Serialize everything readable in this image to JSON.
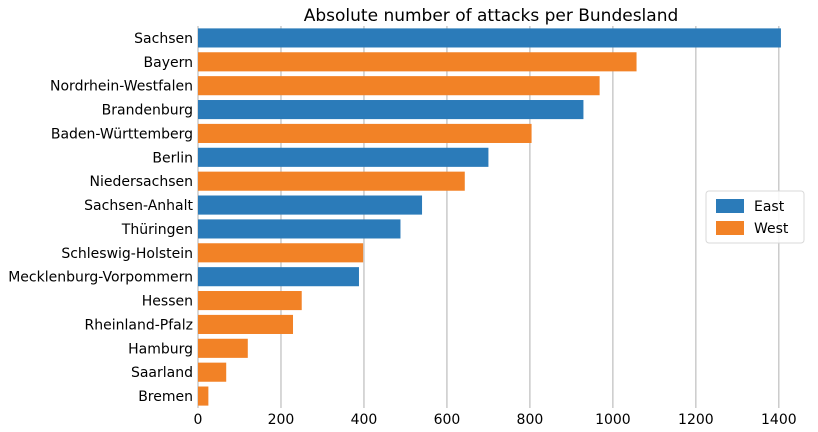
{
  "chart_data": {
    "type": "bar",
    "orientation": "horizontal",
    "title": "Absolute number of attacks per Bundesland",
    "xlabel": "",
    "ylabel": "",
    "xlim": [
      0,
      1410
    ],
    "xticks": [
      0,
      200,
      400,
      600,
      800,
      1000,
      1200,
      1400
    ],
    "grid": "vertical",
    "legend_position": "right",
    "categories": [
      "Sachsen",
      "Bayern",
      "Nordrhein-Westfalen",
      "Brandenburg",
      "Baden-Württemberg",
      "Berlin",
      "Niedersachsen",
      "Sachsen-Anhalt",
      "Thüringen",
      "Schleswig-Holstein",
      "Mecklenburg-Vorpommern",
      "Hessen",
      "Rheinland-Pfalz",
      "Hamburg",
      "Saarland",
      "Bremen"
    ],
    "values": [
      1405,
      1057,
      968,
      929,
      804,
      700,
      643,
      540,
      488,
      398,
      388,
      250,
      229,
      120,
      68,
      25
    ],
    "groups": [
      "East",
      "West",
      "West",
      "East",
      "West",
      "East",
      "West",
      "East",
      "East",
      "West",
      "East",
      "West",
      "West",
      "West",
      "West",
      "West"
    ],
    "legend": [
      {
        "name": "East",
        "color": "#2b7bb9"
      },
      {
        "name": "West",
        "color": "#f28226"
      }
    ]
  }
}
